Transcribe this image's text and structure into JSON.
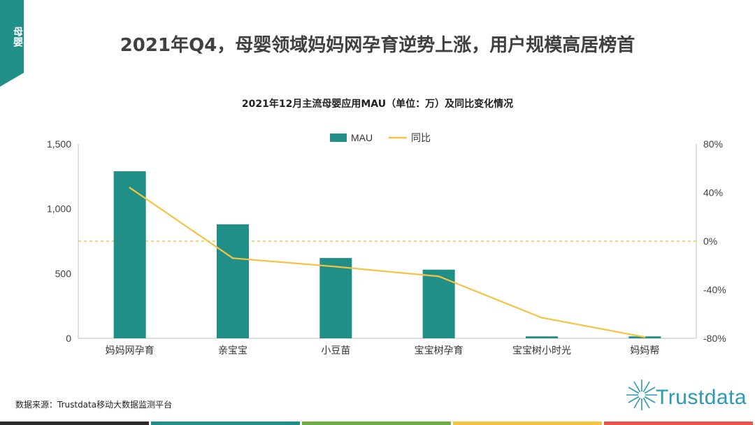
{
  "tag": {
    "label": "母婴",
    "color": "#1f8f88"
  },
  "page_title": "2021年Q4，母婴领域妈妈网孕育逆势上涨，用户规模高居榜首",
  "source": "数据来源：Trustdata移动大数据监测平台",
  "logo": {
    "text": "Trustdata",
    "color": "#2a9ab5"
  },
  "bottom_bar_colors": [
    "#2b2b2b",
    "#1f8f88",
    "#6fae45",
    "#f5c342",
    "#e8534a"
  ],
  "chart_data": {
    "type": "bar",
    "title": "2021年12月主流母婴应用MAU（单位：万）及同比变化情况",
    "categories": [
      "妈妈网孕育",
      "亲宝宝",
      "小豆苗",
      "宝宝树孕育",
      "宝宝树小时光",
      "妈妈帮"
    ],
    "series": [
      {
        "name": "MAU",
        "kind": "bar",
        "axis": "left",
        "color": "#1f8f88",
        "values": [
          1290,
          880,
          620,
          530,
          15,
          15
        ]
      },
      {
        "name": "同比",
        "kind": "line",
        "axis": "right",
        "color": "#f5c342",
        "values": [
          44,
          -14,
          -21,
          -29,
          -63,
          -79
        ]
      }
    ],
    "left_axis": {
      "min": 0,
      "max": 1500,
      "ticks": [
        0,
        500,
        1000,
        1500
      ],
      "tick_labels": [
        "0",
        "500",
        "1,000",
        "1,500"
      ]
    },
    "right_axis": {
      "min": -80,
      "max": 80,
      "ticks": [
        -80,
        -40,
        0,
        40,
        80
      ],
      "tick_labels": [
        "-80%",
        "-40%",
        "0%",
        "40%",
        "80%"
      ]
    },
    "reference_line": {
      "axis": "right",
      "value": 0,
      "style": "dashed"
    },
    "legend": {
      "position": "top-center",
      "items": [
        "MAU",
        "同比"
      ]
    }
  }
}
